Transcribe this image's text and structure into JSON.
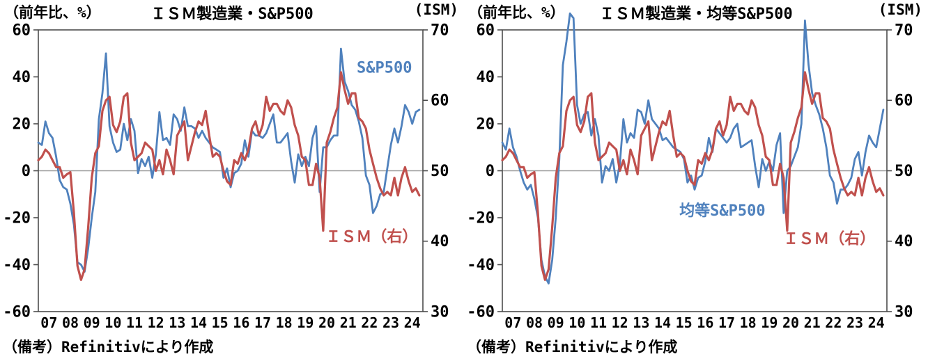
{
  "chart_data": {
    "type": "line",
    "x_start_year": 2007,
    "points_per_year": 6,
    "x_axis_labels": [
      "07",
      "08",
      "09",
      "10",
      "11",
      "12",
      "13",
      "14",
      "15",
      "16",
      "17",
      "18",
      "19",
      "20",
      "21",
      "22",
      "23",
      "24"
    ],
    "left_axis": {
      "label": "（前年比、%）",
      "min": -60,
      "max": 60,
      "ticks": [
        60,
        40,
        20,
        0,
        -20,
        -40,
        -60
      ]
    },
    "right_axis": {
      "label": "(ISM)",
      "min": 30,
      "max": 70,
      "ticks": [
        70,
        60,
        50,
        40,
        30
      ]
    },
    "zero_line_value": 0,
    "note": "（備考）Refinitivにより作成",
    "legend_position": "inside-plot",
    "grid": "zero-line-only",
    "colors": {
      "blue": "#4F81BD",
      "red": "#C0504D",
      "axis": "#4d4d4d",
      "zero": "#9a9a9a"
    },
    "charts": [
      {
        "id": "ism-vs-sp500",
        "title": "ＩＳＭ製造業・S&P500",
        "series": [
          {
            "key": "sp500-yoy",
            "name": "S&P500",
            "axis": "left",
            "color": "blue",
            "stroke_width": 2.8,
            "values": [
              12,
              11,
              21,
              16,
              14,
              6,
              -4,
              -7,
              -8,
              -14,
              -23,
              -39,
              -40,
              -43,
              -33,
              -20,
              -9,
              22,
              33,
              50,
              19,
              12,
              8,
              9,
              20,
              13,
              22,
              17,
              -1,
              5,
              2,
              6,
              -3,
              7,
              25,
              13,
              14,
              11,
              24,
              22,
              17,
              27,
              19,
              19,
              18,
              14,
              17,
              14,
              12,
              10,
              9,
              8,
              -3,
              1,
              -7,
              -1,
              0,
              3,
              13,
              6,
              17,
              15,
              15,
              14,
              16,
              20,
              24,
              12,
              12,
              14,
              16,
              4,
              -5,
              7,
              2,
              6,
              2,
              14,
              19,
              -9,
              10,
              10,
              13,
              15,
              15,
              52,
              38,
              34,
              28,
              26,
              21,
              14,
              -2,
              -6,
              -18,
              -15,
              -10,
              -9,
              1,
              11,
              18,
              12,
              19,
              28,
              25,
              20,
              25,
              26
            ]
          },
          {
            "key": "ism",
            "name": "ＩＳＭ（右）",
            "axis": "right",
            "color": "red",
            "stroke_width": 3.2,
            "values": [
              51.5,
              52,
              53,
              52.5,
              51.5,
              50.5,
              50.5,
              49,
              49.5,
              49.8,
              44,
              36.5,
              34.5,
              36,
              42,
              49,
              52.5,
              53.5,
              58.5,
              60,
              60.5,
              56.5,
              55.5,
              57,
              60.5,
              61,
              54,
              51.5,
              52,
              52.5,
              54,
              53.5,
              53,
              50,
              51.5,
              49.5,
              53,
              51.5,
              49.5,
              55,
              56,
              57,
              51.5,
              53.5,
              55.5,
              57,
              56.5,
              58.5,
              55,
              52,
              52.5,
              52,
              50,
              48.5,
              48,
              51.5,
              51,
              52.5,
              51.5,
              53,
              56,
              57,
              55,
              56.5,
              60.5,
              58.5,
              59.5,
              59.5,
              58.5,
              58,
              60,
              59,
              56.5,
              55,
              52,
              51.5,
              48,
              48,
              51,
              49,
              41.5,
              54,
              55.5,
              57.5,
              59,
              64,
              61.5,
              59.5,
              61,
              61,
              57.5,
              57,
              56,
              53,
              51,
              49,
              47.5,
              46.5,
              47,
              46.5,
              49,
              46.5,
              49,
              50.5,
              48.5,
              47,
              47.5,
              46.5
            ]
          }
        ],
        "annotations": [
          {
            "text": "S&P500",
            "color": "blue",
            "x": 2023.2,
            "y": 44
          },
          {
            "text": "ＩＳＭ（右）",
            "color": "red",
            "x": 2022.6,
            "y": -28
          }
        ]
      },
      {
        "id": "ism-vs-equal-weight-sp500",
        "title": "ＩＳＭ製造業・均等S&P500",
        "series": [
          {
            "key": "equal-sp500-yoy",
            "name": "均等S&P500",
            "axis": "left",
            "color": "blue",
            "stroke_width": 2.8,
            "values": [
              12,
              9,
              18,
              10,
              6,
              0,
              -5,
              -8,
              -6,
              -12,
              -20,
              -38,
              -45,
              -48,
              -38,
              -20,
              5,
              45,
              55,
              67,
              65,
              28,
              20,
              24,
              25,
              15,
              22,
              15,
              -5,
              2,
              0,
              5,
              -5,
              3,
              22,
              12,
              16,
              14,
              26,
              25,
              20,
              30,
              22,
              20,
              18,
              13,
              14,
              12,
              10,
              9,
              8,
              5,
              -5,
              -2,
              -8,
              -3,
              -2,
              4,
              14,
              8,
              18,
              16,
              14,
              12,
              14,
              18,
              20,
              10,
              11,
              12,
              13,
              2,
              -7,
              5,
              0,
              4,
              0,
              11,
              16,
              -18,
              0,
              2,
              6,
              10,
              20,
              64,
              45,
              33,
              28,
              24,
              18,
              10,
              -2,
              -5,
              -14,
              -8,
              -8,
              -6,
              -3,
              5,
              8,
              -2,
              8,
              15,
              12,
              10,
              18,
              26
            ]
          },
          {
            "key": "ism",
            "name": "ＩＳＭ（右）",
            "axis": "right",
            "color": "red",
            "stroke_width": 3.2,
            "values": [
              51.5,
              52,
              53,
              52.5,
              51.5,
              50.5,
              50.5,
              49,
              49.5,
              49.8,
              44,
              36.5,
              34.5,
              36,
              42,
              49,
              52.5,
              53.5,
              58.5,
              60,
              60.5,
              56.5,
              55.5,
              57,
              60.5,
              61,
              54,
              51.5,
              52,
              52.5,
              54,
              53.5,
              53,
              50,
              51.5,
              49.5,
              53,
              51.5,
              49.5,
              55,
              56,
              57,
              51.5,
              53.5,
              55.5,
              57,
              56.5,
              58.5,
              55,
              52,
              52.5,
              52,
              50,
              48.5,
              48,
              51.5,
              51,
              52.5,
              51.5,
              53,
              56,
              57,
              55,
              56.5,
              60.5,
              58.5,
              59.5,
              59.5,
              58.5,
              58,
              60,
              59,
              56.5,
              55,
              52,
              51.5,
              48,
              48,
              51,
              49,
              41.5,
              54,
              55.5,
              57.5,
              59,
              64,
              61.5,
              59.5,
              61,
              61,
              57.5,
              57,
              56,
              53,
              51,
              49,
              47.5,
              46.5,
              47,
              46.5,
              49,
              46.5,
              49,
              50.5,
              48.5,
              47,
              47.5,
              46.5
            ]
          }
        ],
        "annotations": [
          {
            "text": "均等S&P500",
            "color": "blue",
            "x": 2017.3,
            "y": -17
          },
          {
            "text": "ＩＳＭ（右）",
            "color": "red",
            "x": 2022.3,
            "y": -29
          }
        ]
      }
    ]
  }
}
